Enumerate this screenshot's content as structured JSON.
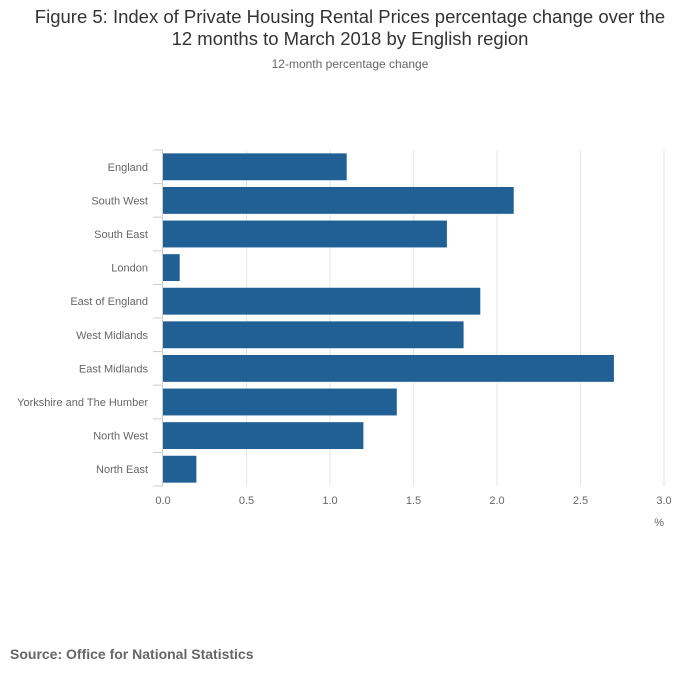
{
  "header": {
    "title_line1": "Figure 5: Index of Private Housing Rental Prices percentage change over the",
    "title_line2": "12 months to March 2018 by English region",
    "subtitle": "12-month percentage change"
  },
  "footer": {
    "source": "Source: Office for National Statistics"
  },
  "colors": {
    "bar": "#206095",
    "grid": "#e6e6e6",
    "axis": "#cccccc",
    "text": "#666666"
  },
  "chart_data": {
    "type": "bar",
    "orientation": "horizontal",
    "title": "Figure 5: Index of Private Housing Rental Prices percentage change over the 12 months to March 2018 by English region",
    "subtitle": "12-month percentage change",
    "xlabel": "%",
    "ylabel": "",
    "xlim": [
      0,
      3.0
    ],
    "xticks": [
      0.0,
      0.5,
      1.0,
      1.5,
      2.0,
      2.5,
      3.0
    ],
    "xtick_labels": [
      "0.0",
      "0.5",
      "1.0",
      "1.5",
      "2.0",
      "2.5",
      "3.0"
    ],
    "grid": true,
    "categories": [
      "England",
      "South West",
      "South East",
      "London",
      "East of England",
      "West Midlands",
      "East Midlands",
      "Yorkshire and The Humber",
      "North West",
      "North East"
    ],
    "values": [
      1.1,
      2.1,
      1.7,
      0.1,
      1.9,
      1.8,
      2.7,
      1.4,
      1.2,
      0.2
    ]
  }
}
